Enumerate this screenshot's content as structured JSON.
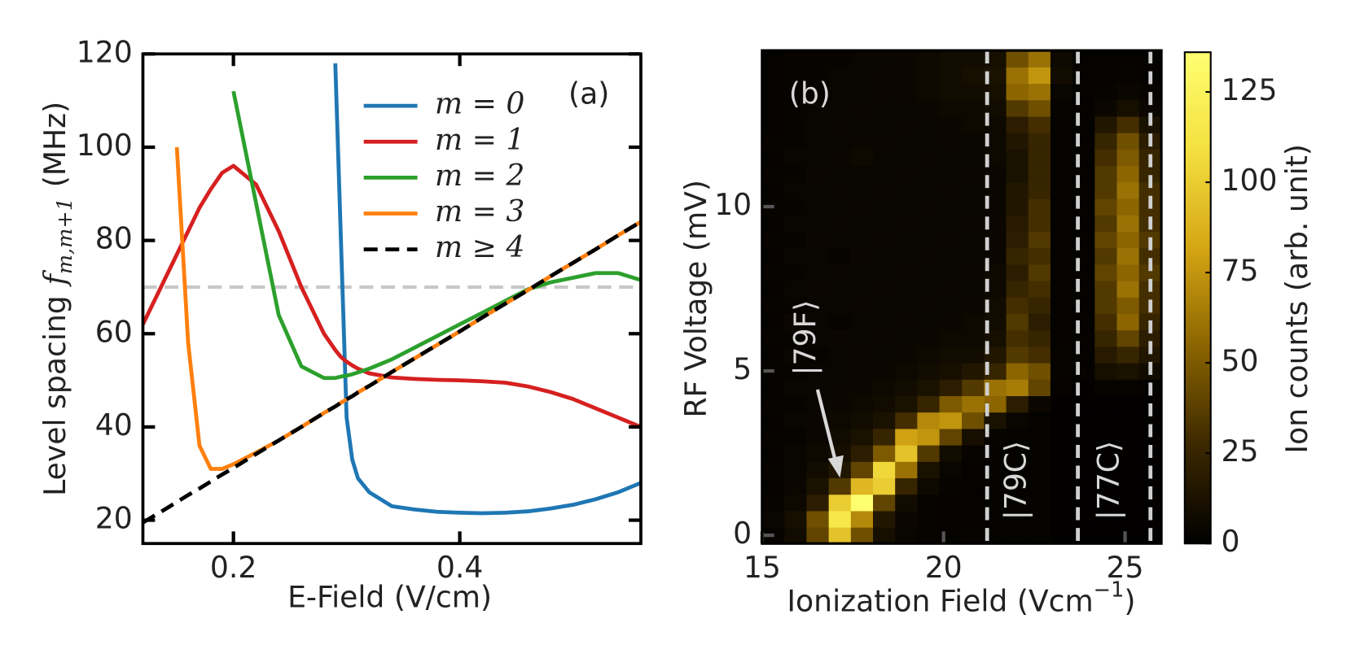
{
  "chart_data": [
    {
      "type": "line",
      "x": [
        0.12,
        0.14,
        0.15,
        0.16,
        0.17,
        0.18,
        0.19,
        0.2,
        0.22,
        0.24,
        0.26,
        0.28,
        0.29,
        0.295,
        0.3,
        0.305,
        0.31,
        0.32,
        0.34,
        0.36,
        0.38,
        0.4,
        0.42,
        0.44,
        0.46,
        0.48,
        0.5,
        0.52,
        0.54,
        0.56
      ],
      "xlim": [
        0.12,
        0.56
      ],
      "ylim": [
        15,
        120
      ],
      "xticks": [
        0.2,
        0.4
      ],
      "yticks": [
        20,
        40,
        60,
        80,
        100,
        120
      ],
      "xlabel": "E-Field (V/cm)",
      "ylabel": "Level spacing",
      "ylabel_symbol": "f",
      "ylabel_subscript": "m,m+1",
      "ylabel_unit": "(MHz)",
      "annotation": "(a)",
      "legend": "upper right",
      "hlines": [
        {
          "value": 70,
          "color": "#c8c8c8"
        }
      ],
      "series": [
        {
          "name": "m = 0",
          "color": "#1f77b4",
          "linestyle": "solid",
          "values": [
            null,
            null,
            null,
            null,
            null,
            null,
            null,
            null,
            null,
            null,
            null,
            null,
            118,
            80,
            42,
            33,
            29,
            26,
            23,
            22.3,
            21.8,
            21.6,
            21.5,
            21.6,
            21.9,
            22.5,
            23.3,
            24.5,
            26,
            28
          ]
        },
        {
          "name": "m = 1",
          "color": "#d62020",
          "linestyle": "solid",
          "values": [
            62,
            72,
            77,
            82,
            87,
            91,
            94.5,
            96,
            92,
            82,
            70,
            60,
            56.5,
            55,
            54,
            53.2,
            52.5,
            51.5,
            50.6,
            50.3,
            50.1,
            50,
            49.8,
            49.5,
            48.7,
            47.5,
            46,
            44,
            42,
            40
          ]
        },
        {
          "name": "m = 2",
          "color": "#2ca02c",
          "linestyle": "solid",
          "values": [
            null,
            null,
            null,
            null,
            null,
            null,
            null,
            112,
            88,
            64,
            53,
            50.5,
            50.5,
            50.8,
            51,
            51.3,
            51.7,
            52.5,
            54.5,
            57,
            59.5,
            62,
            64.5,
            67,
            69.5,
            71,
            72,
            73,
            73,
            71.5
          ]
        },
        {
          "name": "m = 3",
          "color": "#ff7f0e",
          "linestyle": "solid",
          "values": [
            null,
            null,
            100,
            58,
            36,
            31,
            31,
            32,
            34.5,
            37.1,
            40.0,
            43.0,
            44.4,
            45.2,
            45.9,
            46.6,
            47.4,
            48.8,
            51.8,
            54.7,
            57.6,
            60.5,
            63.5,
            66.4,
            69.3,
            72.3,
            75.2,
            78.1,
            81.1,
            84.0
          ]
        },
        {
          "name": "m ≥ 4",
          "color": "#000000",
          "linestyle": "dashed",
          "values": [
            19.5,
            22.4,
            23.9,
            25.4,
            26.8,
            28.3,
            29.8,
            31.2,
            34.2,
            37.1,
            40.0,
            43.0,
            44.4,
            45.2,
            45.9,
            46.6,
            47.4,
            48.8,
            51.8,
            54.7,
            57.6,
            60.5,
            63.5,
            66.4,
            69.3,
            72.3,
            75.2,
            78.1,
            81.1,
            84.0
          ]
        }
      ]
    },
    {
      "type": "heatmap",
      "x": [
        15.31,
        15.92,
        16.53,
        17.14,
        17.75,
        18.36,
        18.97,
        19.58,
        20.19,
        20.81,
        21.42,
        22.03,
        22.64,
        23.25,
        23.86,
        24.47,
        25.08,
        25.69
      ],
      "y": [
        0,
        0.5,
        1,
        1.5,
        2,
        2.5,
        3,
        3.5,
        4,
        4.5,
        5,
        5.5,
        6,
        6.5,
        7,
        7.5,
        8,
        8.5,
        9,
        9.5,
        10,
        10.5,
        11,
        11.5,
        12,
        12.5,
        13,
        13.5,
        14,
        14.5
      ],
      "xlim": [
        15,
        26
      ],
      "ylim": [
        -0.25,
        14.75
      ],
      "xticks": [
        15,
        20,
        25
      ],
      "yticks": [
        0,
        5,
        10
      ],
      "xlabel": "Ionization Field (Vcm",
      "xlabel_sup": "−1",
      "xlabel_end": ")",
      "ylabel": "RF Voltage (mV)",
      "annotation": "(b)",
      "state_labels": [
        "|79F⟩",
        "|79C⟩",
        "|77C⟩"
      ],
      "vlines": [
        21.2,
        23.7,
        25.7
      ],
      "vline_color": "#d0d0d0",
      "colormap": [
        "#000000",
        "#3c2800",
        "#8a6400",
        "#d4a514",
        "#f4e040",
        "#ffff70"
      ],
      "zlim": [
        0,
        136
      ],
      "zticks": [
        0,
        25,
        50,
        75,
        100,
        125
      ],
      "colorbar_label": "Ion counts (arb. unit)",
      "z": [
        [
          3,
          8,
          40,
          95,
          45,
          10,
          4,
          3,
          2,
          3,
          2,
          2,
          2,
          1,
          1,
          1,
          1,
          1
        ],
        [
          4,
          10,
          45,
          115,
          70,
          15,
          5,
          3,
          2,
          2,
          2,
          2,
          2,
          1,
          1,
          1,
          1,
          1
        ],
        [
          3,
          6,
          20,
          100,
          135,
          40,
          8,
          3,
          2,
          2,
          2,
          2,
          2,
          1,
          1,
          1,
          1,
          1
        ],
        [
          2,
          5,
          12,
          35,
          90,
          100,
          25,
          6,
          3,
          2,
          2,
          2,
          2,
          1,
          1,
          1,
          1,
          1
        ],
        [
          3,
          4,
          8,
          15,
          40,
          105,
          60,
          12,
          4,
          2,
          2,
          2,
          2,
          1,
          1,
          1,
          1,
          1
        ],
        [
          2,
          4,
          6,
          10,
          20,
          50,
          95,
          35,
          8,
          3,
          2,
          2,
          2,
          1,
          1,
          1,
          1,
          1
        ],
        [
          3,
          3,
          5,
          8,
          12,
          25,
          80,
          75,
          40,
          10,
          3,
          2,
          2,
          1,
          1,
          1,
          1,
          1
        ],
        [
          2,
          4,
          5,
          6,
          8,
          12,
          30,
          70,
          75,
          45,
          12,
          4,
          2,
          1,
          1,
          1,
          1,
          1
        ],
        [
          3,
          3,
          4,
          5,
          6,
          8,
          12,
          25,
          50,
          60,
          55,
          20,
          5,
          1,
          1,
          1,
          1,
          1
        ],
        [
          2,
          4,
          4,
          5,
          5,
          6,
          8,
          12,
          20,
          35,
          60,
          65,
          40,
          2,
          1,
          3,
          3,
          2
        ],
        [
          3,
          3,
          4,
          4,
          5,
          5,
          6,
          8,
          10,
          15,
          25,
          55,
          45,
          3,
          2,
          10,
          12,
          8
        ],
        [
          2,
          4,
          3,
          4,
          5,
          4,
          5,
          6,
          8,
          8,
          15,
          35,
          30,
          3,
          2,
          18,
          25,
          15
        ],
        [
          3,
          3,
          4,
          5,
          4,
          5,
          4,
          5,
          6,
          6,
          10,
          30,
          25,
          2,
          2,
          25,
          40,
          20
        ],
        [
          2,
          5,
          4,
          3,
          4,
          4,
          5,
          4,
          5,
          6,
          8,
          35,
          20,
          2,
          2,
          30,
          55,
          25
        ],
        [
          3,
          3,
          4,
          4,
          5,
          4,
          4,
          5,
          4,
          5,
          8,
          30,
          25,
          2,
          2,
          35,
          50,
          30
        ],
        [
          2,
          4,
          5,
          4,
          4,
          5,
          4,
          4,
          5,
          4,
          6,
          25,
          30,
          2,
          2,
          35,
          60,
          30
        ],
        [
          3,
          3,
          4,
          5,
          4,
          4,
          5,
          4,
          4,
          5,
          6,
          20,
          35,
          2,
          2,
          40,
          55,
          35
        ],
        [
          2,
          4,
          4,
          3,
          5,
          4,
          4,
          5,
          4,
          4,
          5,
          25,
          30,
          2,
          2,
          35,
          60,
          30
        ],
        [
          3,
          3,
          5,
          4,
          4,
          5,
          4,
          4,
          5,
          4,
          5,
          20,
          35,
          2,
          2,
          40,
          55,
          35
        ],
        [
          2,
          4,
          4,
          5,
          4,
          4,
          5,
          4,
          4,
          5,
          5,
          18,
          30,
          2,
          2,
          35,
          60,
          30
        ],
        [
          3,
          3,
          4,
          4,
          5,
          4,
          4,
          5,
          4,
          4,
          5,
          15,
          30,
          2,
          2,
          40,
          55,
          30
        ],
        [
          2,
          4,
          4,
          5,
          4,
          5,
          4,
          4,
          5,
          4,
          5,
          15,
          25,
          2,
          2,
          35,
          60,
          30
        ],
        [
          3,
          3,
          5,
          4,
          4,
          4,
          5,
          4,
          4,
          5,
          5,
          12,
          25,
          2,
          2,
          35,
          55,
          25
        ],
        [
          2,
          4,
          4,
          5,
          6,
          4,
          4,
          5,
          4,
          4,
          6,
          12,
          25,
          2,
          2,
          30,
          50,
          25
        ],
        [
          3,
          3,
          4,
          4,
          5,
          5,
          4,
          4,
          5,
          4,
          6,
          15,
          25,
          2,
          2,
          25,
          45,
          20
        ],
        [
          2,
          3,
          4,
          5,
          4,
          4,
          5,
          4,
          5,
          6,
          6,
          20,
          30,
          2,
          2,
          15,
          30,
          12
        ],
        [
          2,
          3,
          4,
          4,
          5,
          4,
          4,
          5,
          6,
          6,
          8,
          35,
          45,
          3,
          2,
          5,
          10,
          5
        ],
        [
          2,
          3,
          3,
          4,
          4,
          5,
          5,
          6,
          8,
          8,
          10,
          55,
          60,
          4,
          2,
          3,
          5,
          3
        ],
        [
          2,
          3,
          3,
          4,
          4,
          5,
          5,
          6,
          8,
          10,
          12,
          60,
          75,
          8,
          2,
          2,
          3,
          2
        ],
        [
          2,
          3,
          3,
          3,
          4,
          4,
          5,
          6,
          8,
          8,
          10,
          45,
          60,
          6,
          2,
          2,
          2,
          2
        ]
      ]
    }
  ]
}
